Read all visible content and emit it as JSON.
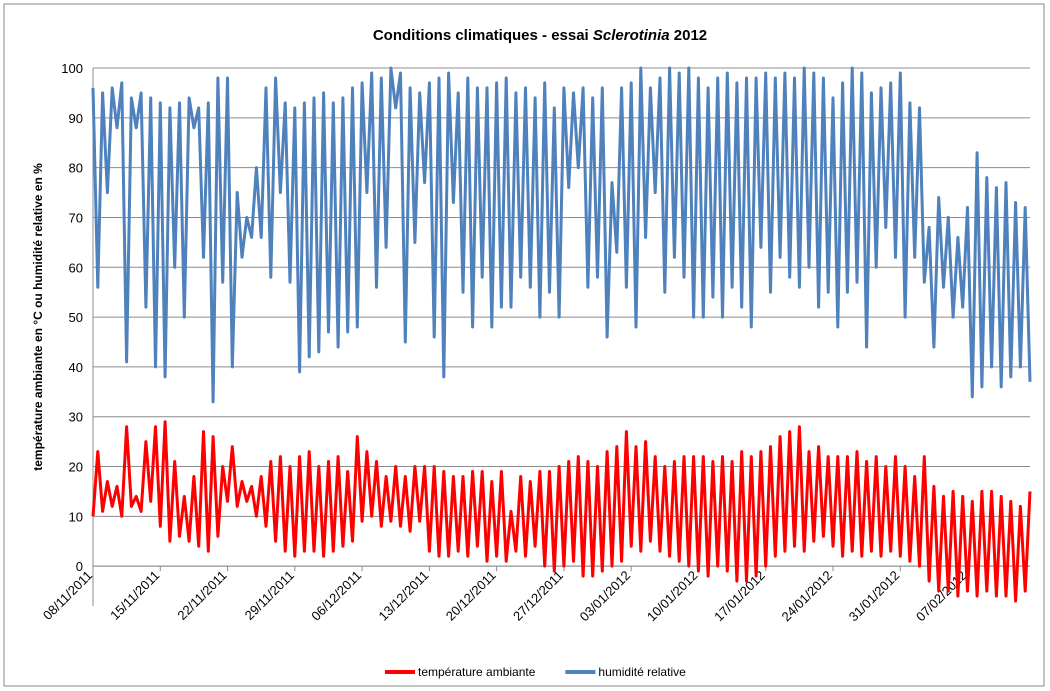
{
  "chart_data": {
    "type": "line",
    "title": [
      "Conditions  climatiques - essai ",
      "Sclerotinia",
      " 2012"
    ],
    "y_label": "température ambiante en °C ou humidité relative en %",
    "categories": [
      "08/11/2011",
      null,
      null,
      null,
      null,
      null,
      null,
      null,
      null,
      null,
      null,
      null,
      null,
      null,
      "15/11/2011",
      null,
      null,
      null,
      null,
      null,
      null,
      null,
      null,
      null,
      null,
      null,
      null,
      null,
      "22/11/2011",
      null,
      null,
      null,
      null,
      null,
      null,
      null,
      null,
      null,
      null,
      null,
      null,
      null,
      "29/11/2011",
      null,
      null,
      null,
      null,
      null,
      null,
      null,
      null,
      null,
      null,
      null,
      null,
      null,
      "06/12/2011",
      null,
      null,
      null,
      null,
      null,
      null,
      null,
      null,
      null,
      null,
      null,
      null,
      null,
      "13/12/2011",
      null,
      null,
      null,
      null,
      null,
      null,
      null,
      null,
      null,
      null,
      null,
      null,
      null,
      "20/12/2011",
      null,
      null,
      null,
      null,
      null,
      null,
      null,
      null,
      null,
      null,
      null,
      null,
      null,
      "27/12/2011",
      null,
      null,
      null,
      null,
      null,
      null,
      null,
      null,
      null,
      null,
      null,
      null,
      null,
      "03/01/2012",
      null,
      null,
      null,
      null,
      null,
      null,
      null,
      null,
      null,
      null,
      null,
      null,
      null,
      "10/01/2012",
      null,
      null,
      null,
      null,
      null,
      null,
      null,
      null,
      null,
      null,
      null,
      null,
      null,
      "17/01/2012",
      null,
      null,
      null,
      null,
      null,
      null,
      null,
      null,
      null,
      null,
      null,
      null,
      null,
      "24/01/2012",
      null,
      null,
      null,
      null,
      null,
      null,
      null,
      null,
      null,
      null,
      null,
      null,
      null,
      "31/01/2012",
      null,
      null,
      null,
      null,
      null,
      null,
      null,
      null,
      null,
      null,
      null,
      null,
      null,
      "07/02/2012",
      null,
      null,
      null,
      null,
      null,
      null,
      null,
      null,
      null,
      null,
      null,
      null,
      null
    ],
    "series": [
      {
        "name": "température ambiante",
        "color": "#ff0000",
        "values": [
          10,
          23,
          11,
          17,
          12,
          16,
          10,
          28,
          12,
          14,
          11,
          25,
          13,
          28,
          8,
          29,
          5,
          21,
          6,
          14,
          5,
          18,
          4,
          27,
          3,
          26,
          6,
          20,
          13,
          24,
          12,
          17,
          13,
          16,
          10,
          18,
          8,
          21,
          5,
          22,
          3,
          20,
          2,
          22,
          3,
          23,
          3,
          20,
          2,
          21,
          3,
          22,
          4,
          19,
          5,
          26,
          9,
          23,
          10,
          21,
          8,
          18,
          9,
          20,
          8,
          18,
          7,
          20,
          9,
          20,
          3,
          20,
          2,
          19,
          2,
          18,
          3,
          18,
          2,
          19,
          4,
          19,
          1,
          17,
          2,
          19,
          1,
          11,
          3,
          18,
          2,
          17,
          4,
          19,
          0,
          19,
          -1,
          20,
          0,
          21,
          1,
          22,
          -2,
          21,
          -2,
          20,
          -1,
          23,
          0,
          24,
          1,
          27,
          4,
          24,
          3,
          25,
          5,
          22,
          3,
          20,
          2,
          21,
          1,
          22,
          0,
          22,
          -1,
          22,
          -2,
          21,
          0,
          22,
          -1,
          21,
          -3,
          23,
          -3,
          22,
          -2,
          23,
          0,
          24,
          2,
          26,
          3,
          27,
          4,
          28,
          3,
          23,
          5,
          24,
          6,
          22,
          4,
          22,
          2,
          22,
          3,
          23,
          2,
          21,
          3,
          22,
          2,
          20,
          3,
          22,
          2,
          20,
          1,
          18,
          0,
          22,
          -3,
          16,
          -5,
          14,
          -5,
          15,
          -6,
          14,
          -5,
          13,
          -6,
          15,
          -5,
          15,
          -6,
          14,
          -6,
          13,
          -7,
          12,
          -5,
          15
        ]
      },
      {
        "name": "humidité relative",
        "color": "#4f81bd",
        "values": [
          96,
          56,
          95,
          75,
          96,
          88,
          97,
          41,
          94,
          88,
          95,
          52,
          94,
          40,
          93,
          38,
          92,
          60,
          93,
          50,
          94,
          88,
          92,
          62,
          93,
          33,
          98,
          57,
          98,
          40,
          75,
          62,
          70,
          66,
          80,
          66,
          96,
          58,
          98,
          75,
          93,
          57,
          92,
          39,
          93,
          42,
          94,
          43,
          95,
          47,
          93,
          44,
          94,
          47,
          96,
          48,
          97,
          75,
          99,
          56,
          98,
          64,
          100,
          92,
          99,
          45,
          96,
          65,
          95,
          77,
          97,
          46,
          98,
          38,
          99,
          73,
          95,
          55,
          98,
          48,
          96,
          58,
          96,
          48,
          97,
          52,
          98,
          52,
          95,
          58,
          96,
          56,
          94,
          50,
          97,
          55,
          92,
          50,
          96,
          76,
          95,
          80,
          96,
          56,
          94,
          58,
          96,
          46,
          77,
          63,
          96,
          56,
          97,
          48,
          100,
          66,
          96,
          75,
          98,
          55,
          100,
          62,
          99,
          58,
          100,
          50,
          98,
          50,
          96,
          54,
          98,
          50,
          99,
          56,
          97,
          52,
          98,
          48,
          98,
          64,
          99,
          55,
          98,
          62,
          99,
          58,
          98,
          56,
          100,
          60,
          99,
          52,
          98,
          55,
          94,
          48,
          97,
          55,
          100,
          57,
          99,
          44,
          95,
          60,
          96,
          68,
          97,
          62,
          99,
          50,
          93,
          62,
          92,
          57,
          68,
          44,
          74,
          56,
          70,
          50,
          66,
          52,
          72,
          34,
          83,
          36,
          78,
          40,
          76,
          36,
          77,
          38,
          73,
          40,
          72,
          37
        ]
      }
    ],
    "ylim": [
      -8,
      100
    ],
    "yticks": [
      0,
      10,
      20,
      30,
      40,
      50,
      60,
      70,
      80,
      90,
      100
    ],
    "grid": true,
    "legend": "bottom"
  }
}
